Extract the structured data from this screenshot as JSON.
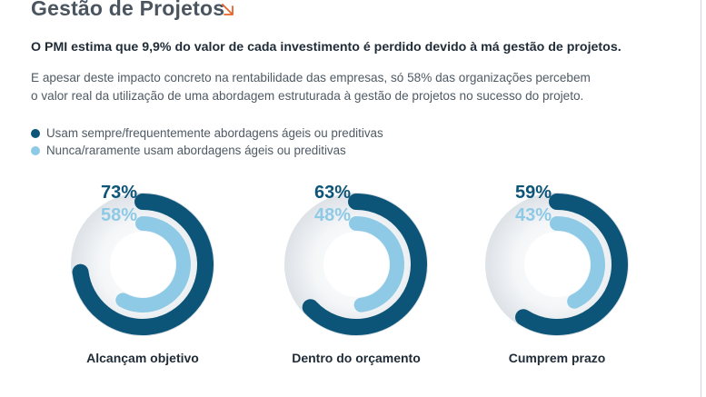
{
  "header": {
    "title": "Gestão de Projetos",
    "arrow_icon": "arrow-down-right-icon",
    "accent_color": "#e8632b"
  },
  "lead_text": "O PMI estima que 9,9% do valor de cada investimento é perdido devido à má gestão de projetos.",
  "body_lines": [
    "E apesar deste impacto concreto na rentabilidade das empresas, só 58% das organizações percebem",
    "o valor real da utilização de uma abordagem estruturada à gestão de projetos no sucesso do projeto."
  ],
  "chart_data": {
    "type": "donut",
    "title": "",
    "categories": [
      "Alcançam objetivo",
      "Dentro do orçamento",
      "Cumprem prazo"
    ],
    "series": [
      {
        "name": "Usam sempre/frequentemente abordagens ágeis ou preditivas",
        "color": "#0d5578",
        "values": [
          73,
          63,
          59
        ],
        "labels": [
          "73%",
          "63%",
          "59%"
        ]
      },
      {
        "name": "Nunca/raramente usam abordagens ágeis ou preditivas",
        "color": "#8ecae6",
        "values": [
          58,
          48,
          43
        ],
        "labels": [
          "58%",
          "48%",
          "43%"
        ]
      }
    ],
    "value_max": 100,
    "legend_position": "top-left"
  }
}
